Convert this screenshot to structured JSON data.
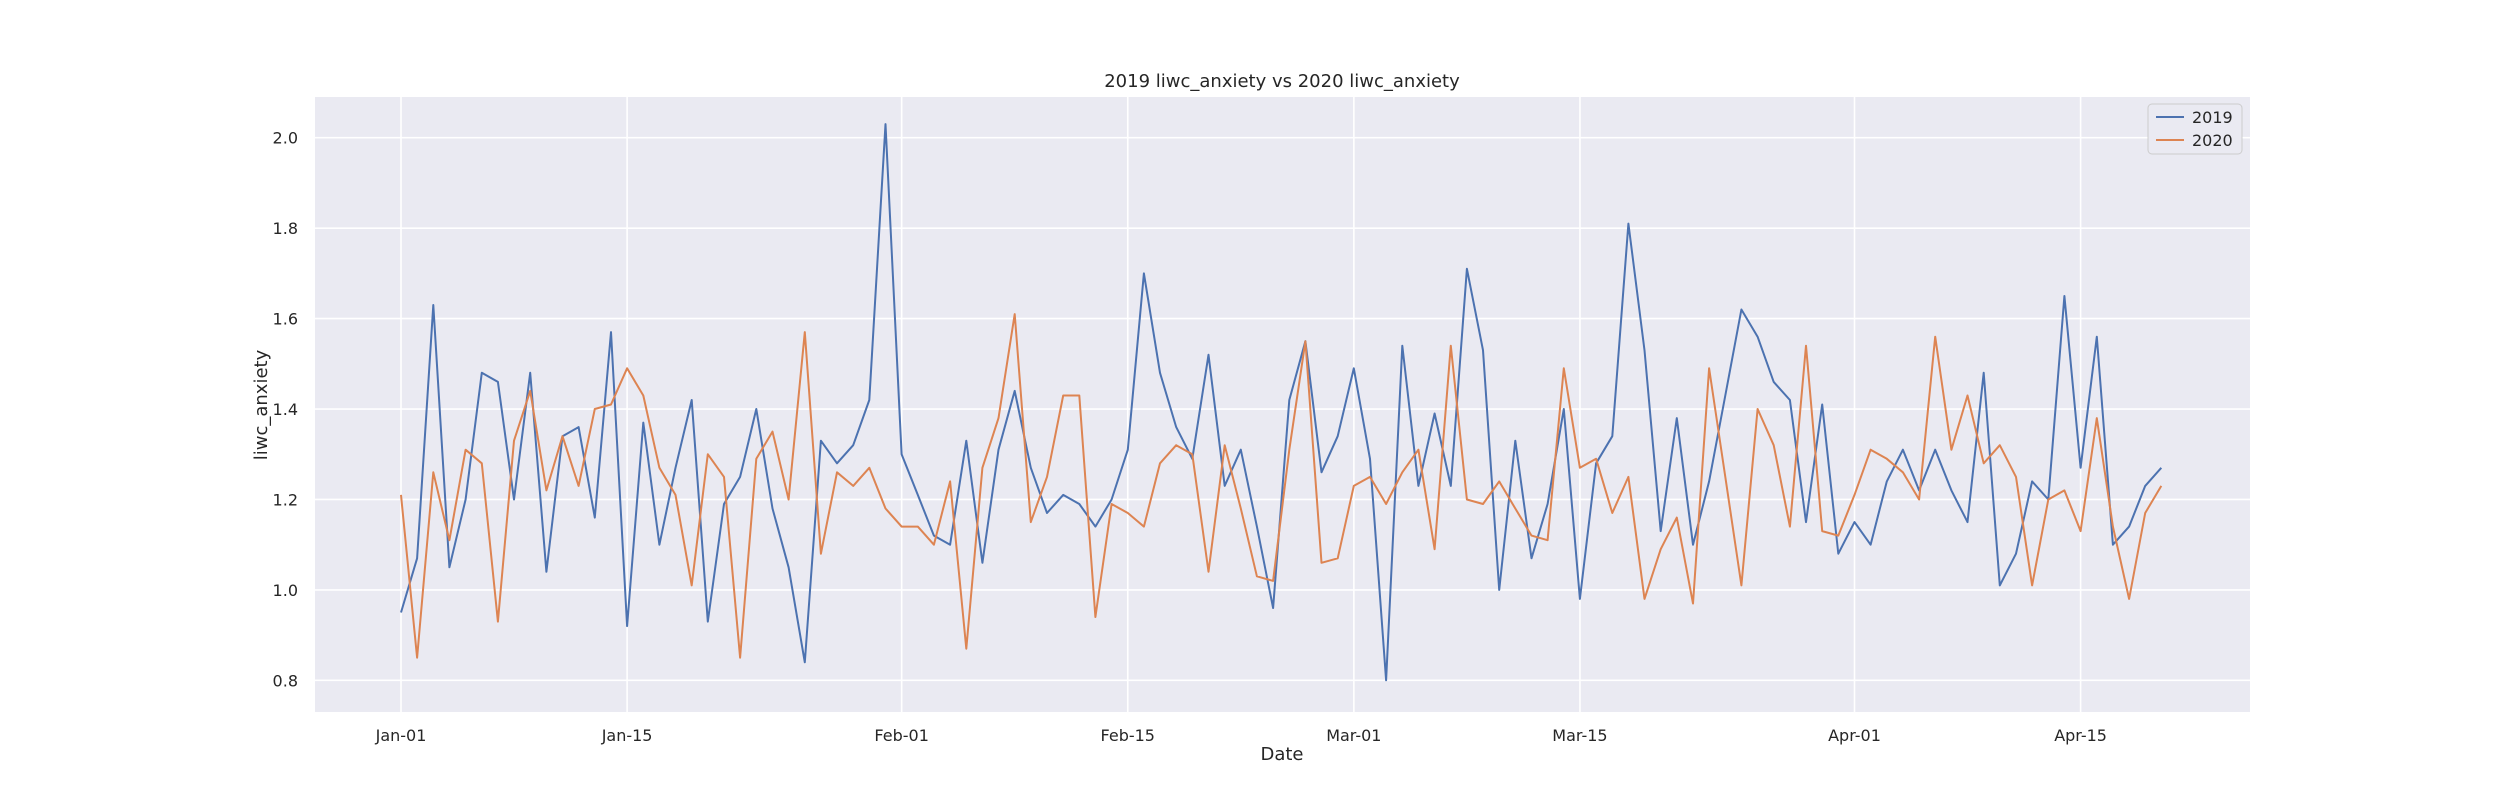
{
  "chart_data": {
    "type": "line",
    "title": "2019 liwc_anxiety vs 2020 liwc_anxiety",
    "xlabel": "Date",
    "ylabel": "liwc_anxiety",
    "x_start": "Jan-01",
    "x_ticks": [
      "Jan-01",
      "Jan-15",
      "Feb-01",
      "Feb-15",
      "Mar-01",
      "Mar-15",
      "Apr-01",
      "Apr-15"
    ],
    "y_ticks": [
      0.8,
      1.0,
      1.2,
      1.4,
      1.6,
      1.8,
      2.0
    ],
    "ylim": [
      0.73,
      2.09
    ],
    "grid": true,
    "legend_position": "top-right",
    "series": [
      {
        "name": "2019",
        "color": "#4c72b0",
        "values": [
          0.95,
          1.07,
          1.63,
          1.05,
          1.2,
          1.48,
          1.46,
          1.2,
          1.48,
          1.04,
          1.34,
          1.36,
          1.16,
          1.57,
          0.92,
          1.37,
          1.1,
          1.27,
          1.42,
          0.93,
          1.19,
          1.25,
          1.4,
          1.18,
          1.05,
          0.84,
          1.33,
          1.28,
          1.32,
          1.42,
          2.03,
          1.3,
          1.21,
          1.12,
          1.1,
          1.33,
          1.06,
          1.31,
          1.44,
          1.27,
          1.17,
          1.21,
          1.19,
          1.14,
          1.2,
          1.31,
          1.7,
          1.48,
          1.36,
          1.29,
          1.52,
          1.23,
          1.31,
          1.14,
          0.96,
          1.42,
          1.55,
          1.26,
          1.34,
          1.49,
          1.29,
          0.8,
          1.54,
          1.23,
          1.39,
          1.23,
          1.71,
          1.53,
          1.0,
          1.33,
          1.07,
          1.19,
          1.4,
          0.98,
          1.28,
          1.34,
          1.81,
          1.53,
          1.13,
          1.38,
          1.1,
          1.24,
          1.43,
          1.62,
          1.56,
          1.46,
          1.42,
          1.15,
          1.41,
          1.08,
          1.15,
          1.1,
          1.24,
          1.31,
          1.22,
          1.31,
          1.22,
          1.15,
          1.48,
          1.01,
          1.08,
          1.24,
          1.2,
          1.65,
          1.27,
          1.56,
          1.1,
          1.14,
          1.23,
          1.27
        ]
      },
      {
        "name": "2020",
        "color": "#dd8452",
        "values": [
          1.21,
          0.85,
          1.26,
          1.11,
          1.31,
          1.28,
          0.93,
          1.33,
          1.44,
          1.22,
          1.34,
          1.23,
          1.4,
          1.41,
          1.49,
          1.43,
          1.27,
          1.21,
          1.01,
          1.3,
          1.25,
          0.85,
          1.29,
          1.35,
          1.2,
          1.57,
          1.08,
          1.26,
          1.23,
          1.27,
          1.18,
          1.14,
          1.14,
          1.1,
          1.24,
          0.87,
          1.27,
          1.38,
          1.61,
          1.15,
          1.25,
          1.43,
          1.43,
          0.94,
          1.19,
          1.17,
          1.14,
          1.28,
          1.32,
          1.3,
          1.04,
          1.32,
          1.18,
          1.03,
          1.02,
          1.31,
          1.55,
          1.06,
          1.07,
          1.23,
          1.25,
          1.19,
          1.26,
          1.31,
          1.09,
          1.54,
          1.2,
          1.19,
          1.24,
          1.18,
          1.12,
          1.11,
          1.49,
          1.27,
          1.29,
          1.17,
          1.25,
          0.98,
          1.09,
          1.16,
          0.97,
          1.49,
          1.25,
          1.01,
          1.4,
          1.32,
          1.14,
          1.54,
          1.13,
          1.12,
          1.21,
          1.31,
          1.29,
          1.26,
          1.2,
          1.56,
          1.31,
          1.43,
          1.28,
          1.32,
          1.25,
          1.01,
          1.2,
          1.22,
          1.13,
          1.38,
          1.14,
          0.98,
          1.17,
          1.23
        ]
      }
    ]
  }
}
